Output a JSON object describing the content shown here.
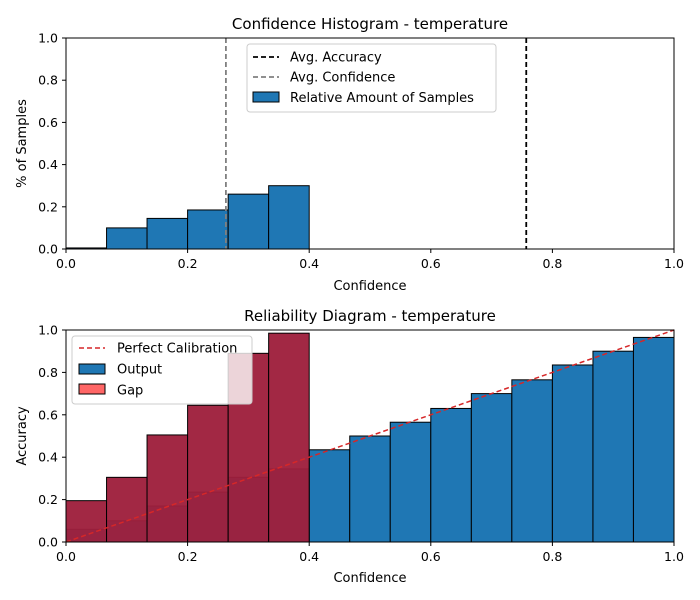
{
  "colors": {
    "output_bar": "#1f77b4",
    "gap_bar": "#ff0000",
    "gap_overlay": "#9e1f3c",
    "perfect_line": "#d62728",
    "avg_accuracy_line": "#000000",
    "avg_confidence_line": "#808080",
    "bar_edge": "#000000"
  },
  "chart_data": [
    {
      "type": "bar",
      "title": "Confidence Histogram - temperature",
      "xlabel": "Confidence",
      "ylabel": "% of Samples",
      "xlim": [
        0,
        1
      ],
      "ylim": [
        0,
        1
      ],
      "xticks": [
        "0.0",
        "0.2",
        "0.4",
        "0.6",
        "0.8",
        "1.0"
      ],
      "yticks": [
        "0.0",
        "0.2",
        "0.4",
        "0.6",
        "0.8",
        "1.0"
      ],
      "bin_edges": [
        0.0,
        0.0667,
        0.1333,
        0.2,
        0.2667,
        0.3333,
        0.4
      ],
      "values": [
        0.005,
        0.1,
        0.145,
        0.185,
        0.26,
        0.3
      ],
      "avg_accuracy": 0.757,
      "avg_confidence": 0.263,
      "legend_position": "upper-center",
      "legend": {
        "avg_accuracy": "Avg. Accuracy",
        "avg_confidence": "Avg. Confidence",
        "samples": "Relative Amount of Samples"
      }
    },
    {
      "type": "bar",
      "title": "Reliability Diagram - temperature",
      "xlabel": "Confidence",
      "ylabel": "Accuracy",
      "xlim": [
        0,
        1
      ],
      "ylim": [
        0,
        1
      ],
      "xticks": [
        "0.0",
        "0.2",
        "0.4",
        "0.6",
        "0.8",
        "1.0"
      ],
      "yticks": [
        "0.0",
        "0.2",
        "0.4",
        "0.6",
        "0.8",
        "1.0"
      ],
      "bin_edges": [
        0.0,
        0.0667,
        0.1333,
        0.2,
        0.2667,
        0.3333,
        0.4,
        0.4667,
        0.5333,
        0.6,
        0.6667,
        0.7333,
        0.8,
        0.8667,
        0.9333,
        1.0
      ],
      "output": [
        0.06,
        0.1,
        0.17,
        0.235,
        0.305,
        0.345,
        0.435,
        0.5,
        0.565,
        0.63,
        0.7,
        0.765,
        0.835,
        0.9,
        0.965
      ],
      "gap_top": [
        0.195,
        0.305,
        0.505,
        0.645,
        0.89,
        0.985,
        0.435,
        0.5,
        0.565,
        0.63,
        0.7,
        0.765,
        0.835,
        0.9,
        0.965
      ],
      "legend_position": "upper-left",
      "legend": {
        "perfect": "Perfect Calibration",
        "output": "Output",
        "gap": "Gap"
      }
    }
  ]
}
